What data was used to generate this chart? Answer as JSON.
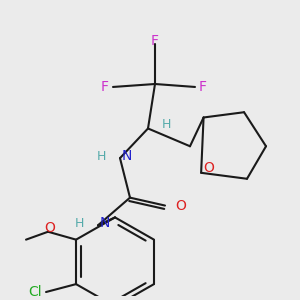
{
  "background_color": "#ebebeb",
  "line_color": "#1a1a1a",
  "lw": 1.5,
  "colors": {
    "F": "#cc33cc",
    "H": "#55aaaa",
    "N": "#2222cc",
    "O": "#dd2222",
    "Cl": "#22aa22",
    "C": "#1a1a1a"
  },
  "fs": 10,
  "fs_small": 9
}
